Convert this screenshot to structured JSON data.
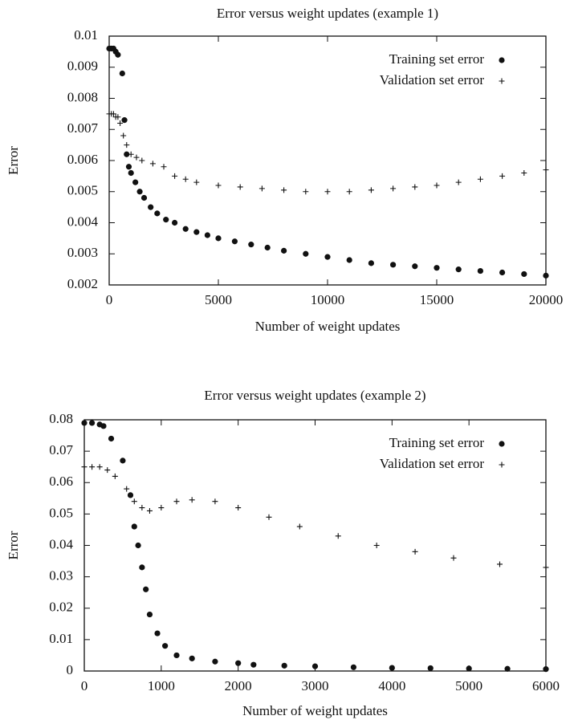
{
  "chart_data": [
    {
      "type": "scatter",
      "title": "Error versus weight updates (example 1)",
      "x_label": "Number of weight updates",
      "y_label": "Error",
      "xlim": [
        0,
        20000
      ],
      "ylim": [
        0.002,
        0.01
      ],
      "xticks": [
        0,
        5000,
        10000,
        15000,
        20000
      ],
      "yticks": [
        0.002,
        0.003,
        0.004,
        0.005,
        0.006,
        0.007,
        0.008,
        0.009,
        0.01
      ],
      "legend": "upper right",
      "series": [
        {
          "name": "Training set error",
          "color": "#111111",
          "marker": "dot",
          "x": [
            0,
            100,
            200,
            300,
            400,
            600,
            700,
            800,
            900,
            1000,
            1200,
            1400,
            1600,
            1900,
            2200,
            2600,
            3000,
            3500,
            4000,
            4500,
            5000,
            5750,
            6500,
            7250,
            8000,
            9000,
            10000,
            11000,
            12000,
            13000,
            14000,
            15000,
            16000,
            17000,
            18000,
            19000,
            20000
          ],
          "values": [
            0.0096,
            0.0096,
            0.0096,
            0.0095,
            0.0094,
            0.0088,
            0.0073,
            0.0062,
            0.0058,
            0.0056,
            0.0053,
            0.005,
            0.0048,
            0.0045,
            0.0043,
            0.0041,
            0.004,
            0.0038,
            0.0037,
            0.0036,
            0.0035,
            0.0034,
            0.0033,
            0.0032,
            0.0031,
            0.003,
            0.0029,
            0.0028,
            0.0027,
            0.00265,
            0.0026,
            0.00255,
            0.0025,
            0.00245,
            0.0024,
            0.00235,
            0.0023
          ]
        },
        {
          "name": "Validation set error",
          "color": "#111111",
          "marker": "plus",
          "x": [
            0,
            100,
            200,
            300,
            400,
            500,
            650,
            800,
            1000,
            1250,
            1500,
            2000,
            2500,
            3000,
            3500,
            4000,
            5000,
            6000,
            7000,
            8000,
            9000,
            10000,
            11000,
            12000,
            13000,
            14000,
            15000,
            16000,
            17000,
            18000,
            19000,
            20000
          ],
          "values": [
            0.0075,
            0.0075,
            0.0075,
            0.0074,
            0.0074,
            0.0072,
            0.0068,
            0.0065,
            0.0062,
            0.0061,
            0.006,
            0.0059,
            0.0058,
            0.0055,
            0.0054,
            0.0053,
            0.0052,
            0.00515,
            0.0051,
            0.00505,
            0.005,
            0.005,
            0.005,
            0.00505,
            0.0051,
            0.00515,
            0.0052,
            0.0053,
            0.0054,
            0.0055,
            0.0056,
            0.0057
          ]
        }
      ]
    },
    {
      "type": "scatter",
      "title": "Error versus weight updates (example 2)",
      "x_label": "Number of weight updates",
      "y_label": "Error",
      "xlim": [
        0,
        6000
      ],
      "ylim": [
        0,
        0.08
      ],
      "xticks": [
        0,
        1000,
        2000,
        3000,
        4000,
        5000,
        6000
      ],
      "yticks": [
        0,
        0.01,
        0.02,
        0.03,
        0.04,
        0.05,
        0.06,
        0.07,
        0.08
      ],
      "legend": "upper right",
      "series": [
        {
          "name": "Training set error",
          "color": "#111111",
          "marker": "dot",
          "x": [
            0,
            100,
            200,
            250,
            350,
            500,
            600,
            650,
            700,
            750,
            800,
            850,
            950,
            1050,
            1200,
            1400,
            1700,
            2000,
            2200,
            2600,
            3000,
            3500,
            4000,
            4500,
            5000,
            5500,
            6000
          ],
          "values": [
            0.079,
            0.079,
            0.0785,
            0.078,
            0.074,
            0.067,
            0.056,
            0.046,
            0.04,
            0.033,
            0.026,
            0.018,
            0.012,
            0.008,
            0.005,
            0.004,
            0.003,
            0.0025,
            0.002,
            0.0017,
            0.0015,
            0.0012,
            0.001,
            0.0009,
            0.0008,
            0.0007,
            0.0006
          ]
        },
        {
          "name": "Validation set error",
          "color": "#111111",
          "marker": "plus",
          "x": [
            0,
            100,
            200,
            300,
            400,
            550,
            650,
            750,
            850,
            1000,
            1200,
            1400,
            1700,
            2000,
            2400,
            2800,
            3300,
            3800,
            4300,
            4800,
            5400,
            6000
          ],
          "values": [
            0.065,
            0.065,
            0.065,
            0.064,
            0.062,
            0.058,
            0.054,
            0.052,
            0.051,
            0.052,
            0.054,
            0.0545,
            0.054,
            0.052,
            0.049,
            0.046,
            0.043,
            0.04,
            0.038,
            0.036,
            0.034,
            0.033
          ]
        }
      ]
    }
  ]
}
